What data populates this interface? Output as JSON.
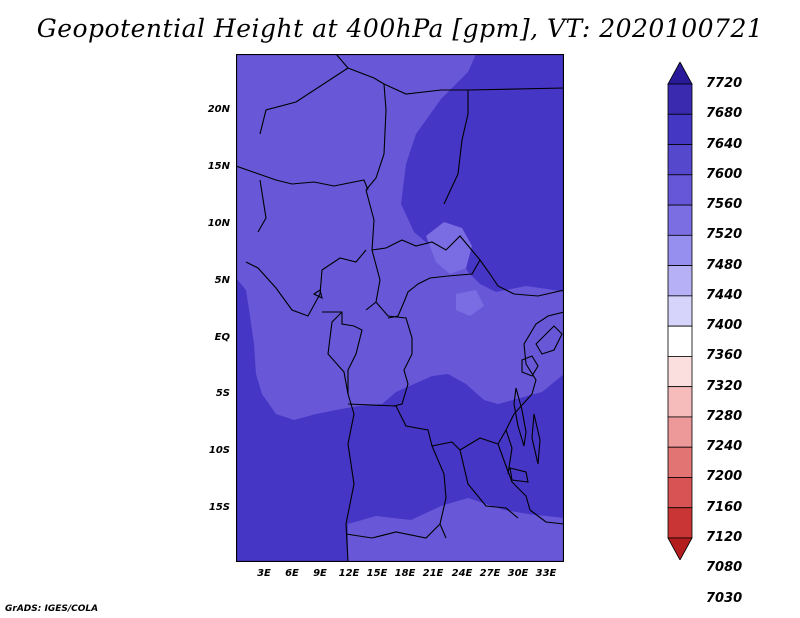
{
  "title": "Geopotential Height at 400hPa [gpm], VT: 2020100721",
  "credit": "GrADS: IGES/COLA",
  "lat_labels": [
    "20N",
    "15N",
    "10N",
    "5N",
    "EQ",
    "5S",
    "10S",
    "15S"
  ],
  "lon_labels": [
    "3E",
    "6E",
    "9E",
    "12E",
    "15E",
    "18E",
    "21E",
    "24E",
    "27E",
    "30E",
    "33E"
  ],
  "colorbar": {
    "labels": [
      "7720",
      "7680",
      "7640",
      "7600",
      "7560",
      "7520",
      "7480",
      "7440",
      "7400",
      "7360",
      "7320",
      "7280",
      "7240",
      "7200",
      "7160",
      "7120",
      "7080",
      "7030"
    ],
    "colors": [
      "#2a1a9a",
      "#3a2ab0",
      "#4437c4",
      "#5548cc",
      "#6656d8",
      "#7a6ee2",
      "#968ff0",
      "#b6b0f6",
      "#d6d4fa",
      "#ffffff",
      "#fbdede",
      "#f6bcbc",
      "#ee9999",
      "#e37474",
      "#d85454",
      "#c93434",
      "#b41d1d"
    ]
  },
  "map_colors": {
    "dark": "#4636c6",
    "mid": "#6858d8",
    "light": "#7a6ce2",
    "border": "#000000"
  }
}
